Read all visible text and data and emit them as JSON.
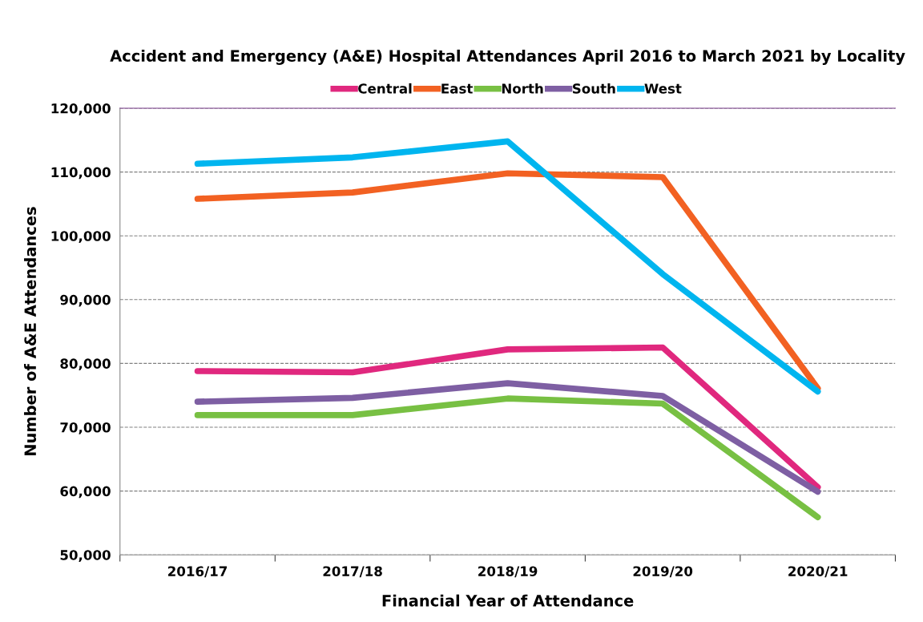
{
  "chart_data": {
    "type": "line",
    "title": "Accident and Emergency (A&E) Hospital Attendances April 2016 to March 2021 by Locality",
    "xlabel": "Financial Year of Attendance",
    "ylabel": "Number of A&E Attendances",
    "categories": [
      "2016/17",
      "2017/18",
      "2018/19",
      "2019/20",
      "2020/21"
    ],
    "series": [
      {
        "name": "Central",
        "color": "#e0287e",
        "values": [
          78800,
          78600,
          82200,
          82500,
          60600
        ]
      },
      {
        "name": "East",
        "color": "#f26122",
        "values": [
          105800,
          106800,
          109800,
          109200,
          76100
        ]
      },
      {
        "name": "North",
        "color": "#78c043",
        "values": [
          71900,
          71900,
          74500,
          73700,
          55900
        ]
      },
      {
        "name": "South",
        "color": "#7e5fa3",
        "values": [
          74000,
          74600,
          76900,
          74900,
          59900
        ]
      },
      {
        "name": "West",
        "color": "#00b5ef",
        "values": [
          111300,
          112300,
          114800,
          94000,
          75600
        ]
      }
    ],
    "ylim": [
      50000,
      120000
    ],
    "yticks": [
      {
        "value": 50000,
        "label": "50,000"
      },
      {
        "value": 60000,
        "label": "60,000"
      },
      {
        "value": 70000,
        "label": "70,000"
      },
      {
        "value": 80000,
        "label": "80,000"
      },
      {
        "value": 90000,
        "label": "90,000"
      },
      {
        "value": 100000,
        "label": "100,000"
      },
      {
        "value": 110000,
        "label": "110,000"
      },
      {
        "value": 120000,
        "label": "120,000"
      }
    ],
    "grid": "y",
    "legend": "top",
    "marker": "none",
    "line_style": "solid"
  }
}
